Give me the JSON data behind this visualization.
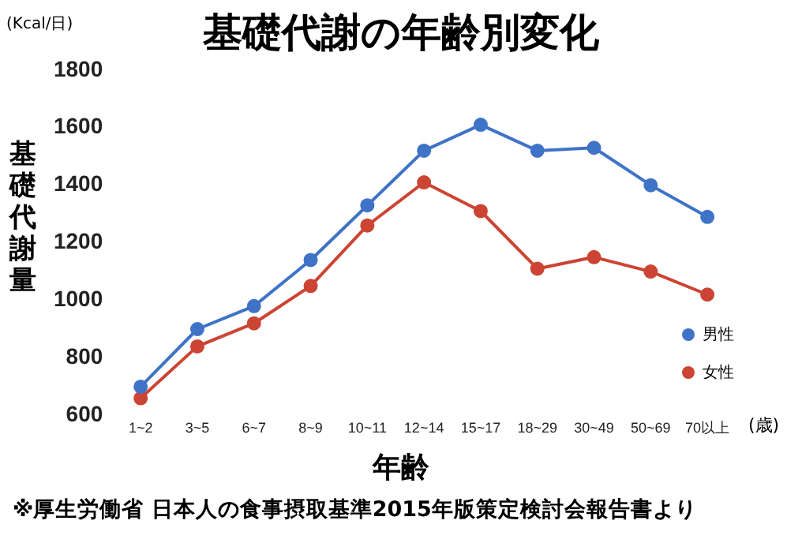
{
  "chart_data": {
    "type": "line",
    "title": "基礎代謝の年齢別変化",
    "xlabel": "年齢",
    "ylabel": "基礎代謝量",
    "annotations": [
      "(Kcal/日)",
      "(歳)",
      "※厚生労働省 日本人の食事摂取基準2015年版策定検討会報告書より"
    ],
    "categories": [
      "1~2",
      "3~5",
      "6~7",
      "8~9",
      "10~11",
      "12~14",
      "15~17",
      "18~29",
      "30~49",
      "50~69",
      "70以上"
    ],
    "series": [
      {
        "name": "男性",
        "color": "#3f73c7",
        "values": [
          700,
          900,
          980,
          1140,
          1330,
          1520,
          1610,
          1520,
          1530,
          1400,
          1290
        ]
      },
      {
        "name": "女性",
        "color": "#cc4433",
        "values": [
          660,
          840,
          920,
          1050,
          1260,
          1410,
          1310,
          1110,
          1150,
          1100,
          1020
        ]
      }
    ],
    "ylim": [
      600,
      1800
    ],
    "yticks": [
      600,
      800,
      1000,
      1200,
      1400,
      1600,
      1800
    ],
    "grid": false,
    "legend": "right",
    "marker": "circle",
    "line_style": "solid"
  }
}
